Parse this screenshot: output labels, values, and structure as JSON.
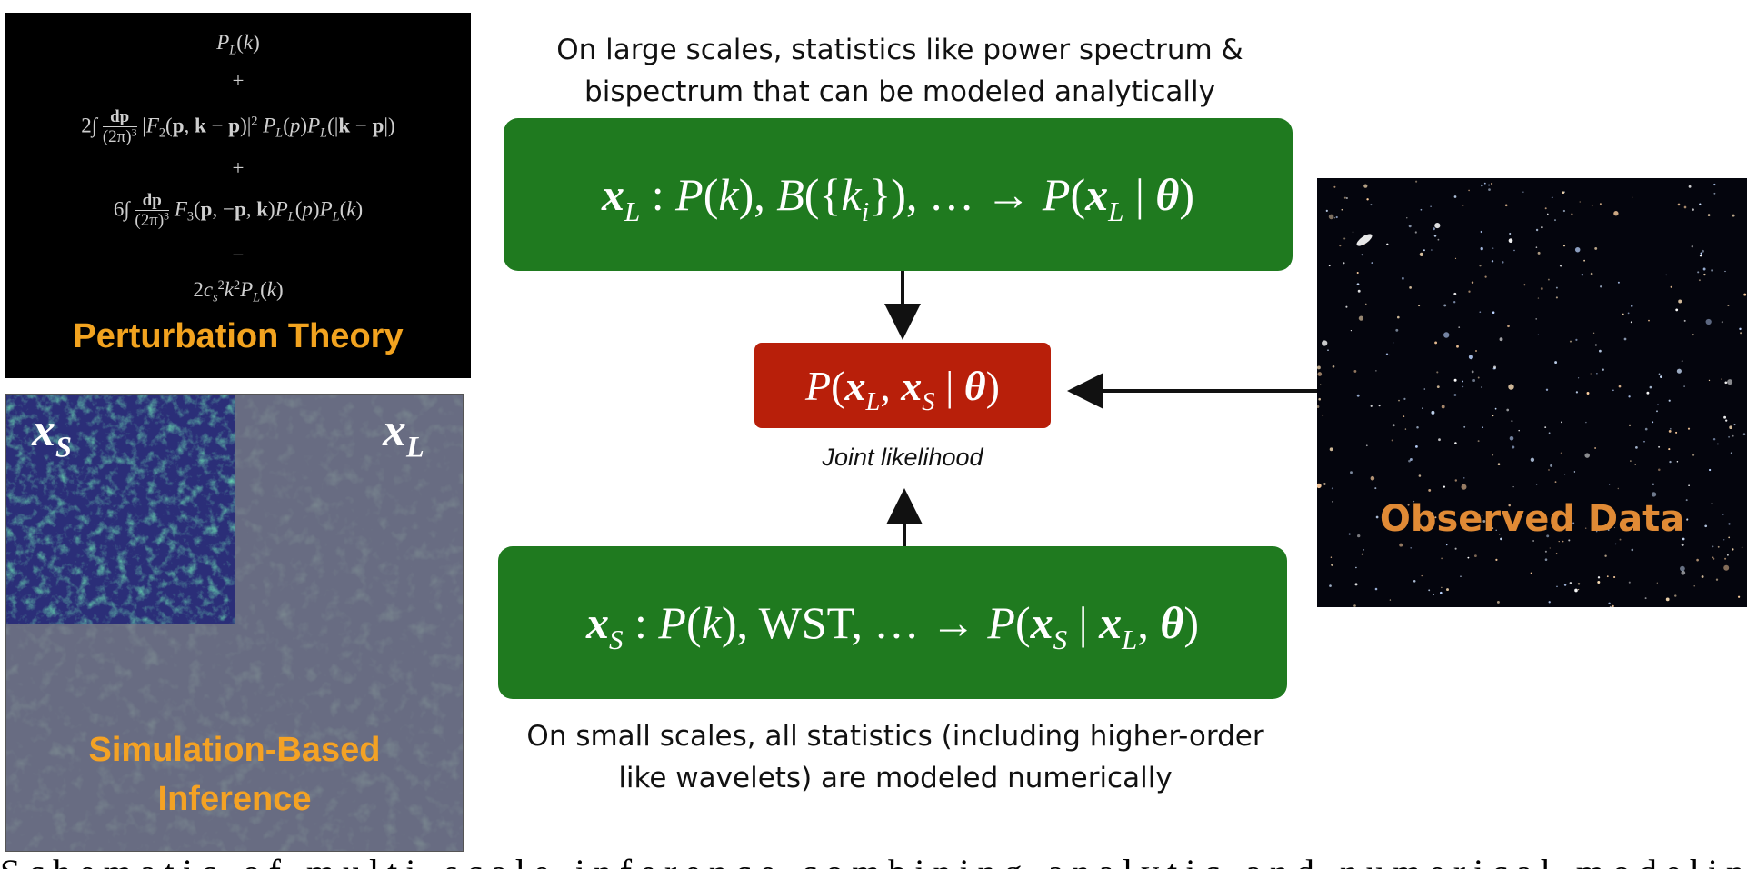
{
  "perturbation": {
    "line1": "P_L(k)",
    "plus1": "+",
    "line2": "2∫ dp/(2π)^3 |F_2(p, k − p)|^2 P_L(p)P_L(|k − p|)",
    "plus2": "+",
    "line3": "6∫ dp/(2π)^3 F_3(p, −p, k)P_L(p)P_L(k)",
    "minus": "−",
    "line4": "2c_s^2 k^2 P_L(k)",
    "title": "Perturbation Theory"
  },
  "simulation": {
    "label_line1": "Simulation-Based",
    "label_line2": "Inference",
    "small_scale_symbol": "x_S",
    "large_scale_symbol": "x_L"
  },
  "top_caption": {
    "line1": "On large scales, statistics like power spectrum &",
    "line2": "bispectrum that can be modeled analytically"
  },
  "large_box": {
    "equation": "x_L : P(k), B({k_i}), … → P(x_L | θ)"
  },
  "joint_box": {
    "equation": "P(x_L, x_S | θ)",
    "caption": "Joint likelihood"
  },
  "small_box": {
    "equation": "x_S : P(k), WST, … → P(x_S | x_L, θ)"
  },
  "bottom_caption": {
    "line1": "On small scales, all statistics (including higher-order",
    "line2": "like wavelets) are modeled numerically"
  },
  "observed": {
    "label": "Observed Data"
  },
  "colors": {
    "green_box": "#1f7a1f",
    "red_box": "#b81f0a",
    "orange_label": "#f2a31f",
    "observed_label": "#e08a35"
  }
}
